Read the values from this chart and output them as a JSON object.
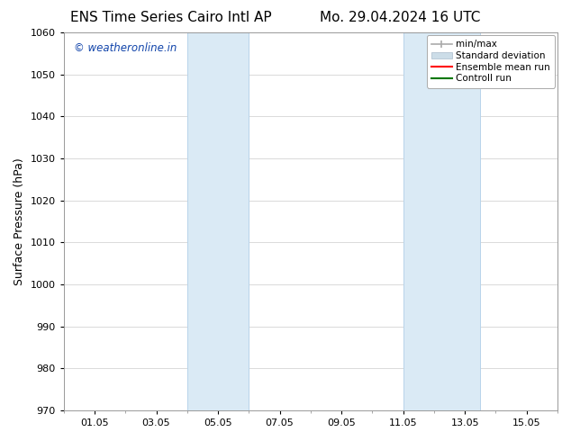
{
  "title_left": "ENS Time Series Cairo Intl AP",
  "title_right": "Mo. 29.04.2024 16 UTC",
  "ylabel": "Surface Pressure (hPa)",
  "ylim": [
    970,
    1060
  ],
  "yticks": [
    970,
    980,
    990,
    1000,
    1010,
    1020,
    1030,
    1040,
    1050,
    1060
  ],
  "xtick_labels": [
    "01.05",
    "03.05",
    "05.05",
    "07.05",
    "09.05",
    "11.05",
    "13.05",
    "15.05"
  ],
  "xtick_positions": [
    1,
    3,
    5,
    7,
    9,
    11,
    13,
    15
  ],
  "xlim": [
    0.0,
    16.0
  ],
  "shaded_bands": [
    {
      "x_start": 4.0,
      "x_end": 6.0
    },
    {
      "x_start": 11.0,
      "x_end": 13.5
    }
  ],
  "shaded_color": "#daeaf5",
  "shaded_edge_color": "#b8d4ea",
  "bg_color": "#ffffff",
  "plot_bg_color": "#ffffff",
  "grid_color": "#cccccc",
  "watermark_text": "© weatheronline.in",
  "watermark_color": "#1144aa",
  "legend_entries": [
    {
      "label": "min/max",
      "color": "#aaaaaa",
      "lw": 1.5
    },
    {
      "label": "Standard deviation",
      "color": "#ccdde8",
      "lw": 6
    },
    {
      "label": "Ensemble mean run",
      "color": "#ff0000",
      "lw": 1.5
    },
    {
      "label": "Controll run",
      "color": "#007700",
      "lw": 1.5
    }
  ],
  "title_fontsize": 11,
  "label_fontsize": 9,
  "tick_fontsize": 8,
  "watermark_fontsize": 8.5,
  "legend_fontsize": 7.5
}
